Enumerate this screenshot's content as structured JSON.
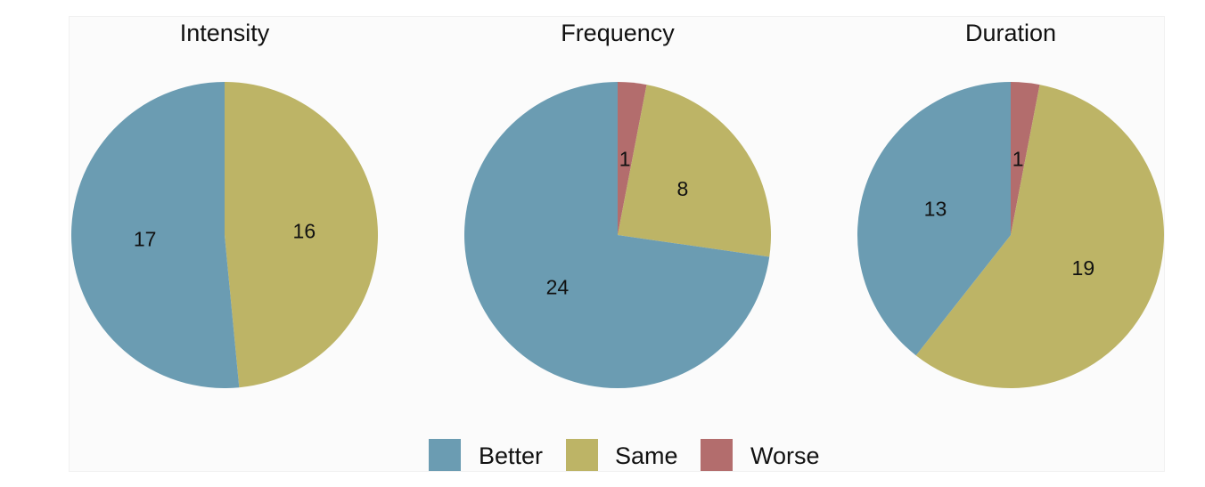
{
  "chart_data": [
    {
      "type": "pie",
      "title": "Intensity",
      "slices": [
        {
          "label": "Better",
          "value": 17
        },
        {
          "label": "Same",
          "value": 16
        },
        {
          "label": "Worse",
          "value": 0
        }
      ]
    },
    {
      "type": "pie",
      "title": "Frequency",
      "slices": [
        {
          "label": "Better",
          "value": 24
        },
        {
          "label": "Same",
          "value": 8
        },
        {
          "label": "Worse",
          "value": 1
        }
      ]
    },
    {
      "type": "pie",
      "title": "Duration",
      "slices": [
        {
          "label": "Better",
          "value": 13
        },
        {
          "label": "Same",
          "value": 19
        },
        {
          "label": "Worse",
          "value": 1
        }
      ]
    }
  ],
  "legend": {
    "placement": "bottom-center",
    "items": [
      {
        "label": "Better",
        "color": "#6b9cb2"
      },
      {
        "label": "Same",
        "color": "#bdb466"
      },
      {
        "label": "Worse",
        "color": "#b36d6d"
      }
    ]
  }
}
